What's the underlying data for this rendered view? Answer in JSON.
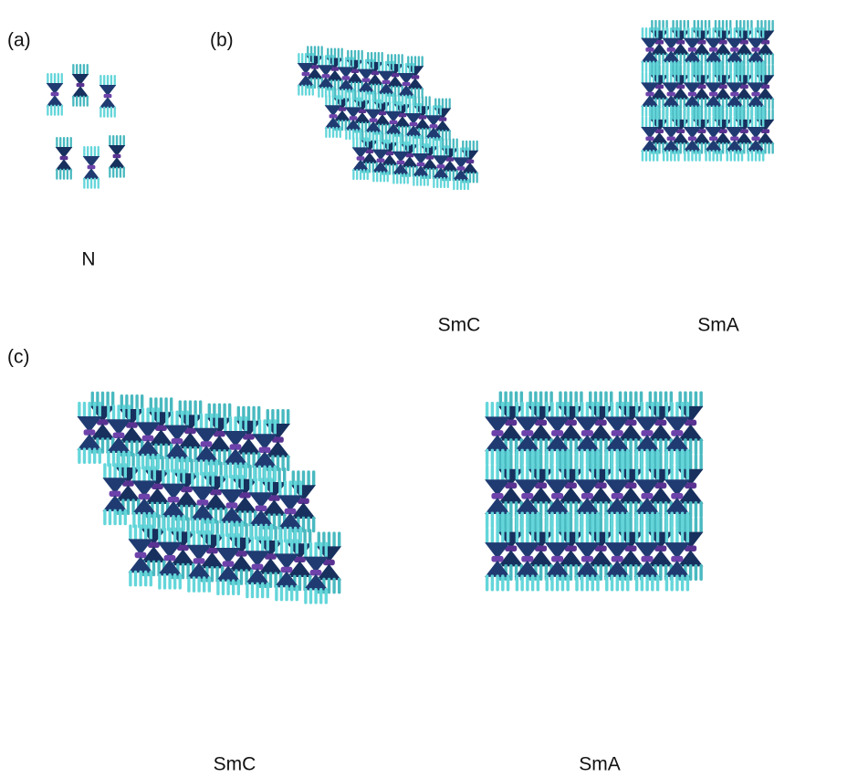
{
  "panels": [
    {
      "label": "(a)",
      "phases": [
        "N"
      ]
    },
    {
      "label": "(b)",
      "phases": [
        "SmC",
        "SmA"
      ]
    },
    {
      "label": "(c)",
      "phases": [
        "SmC",
        "SmA"
      ]
    }
  ]
}
